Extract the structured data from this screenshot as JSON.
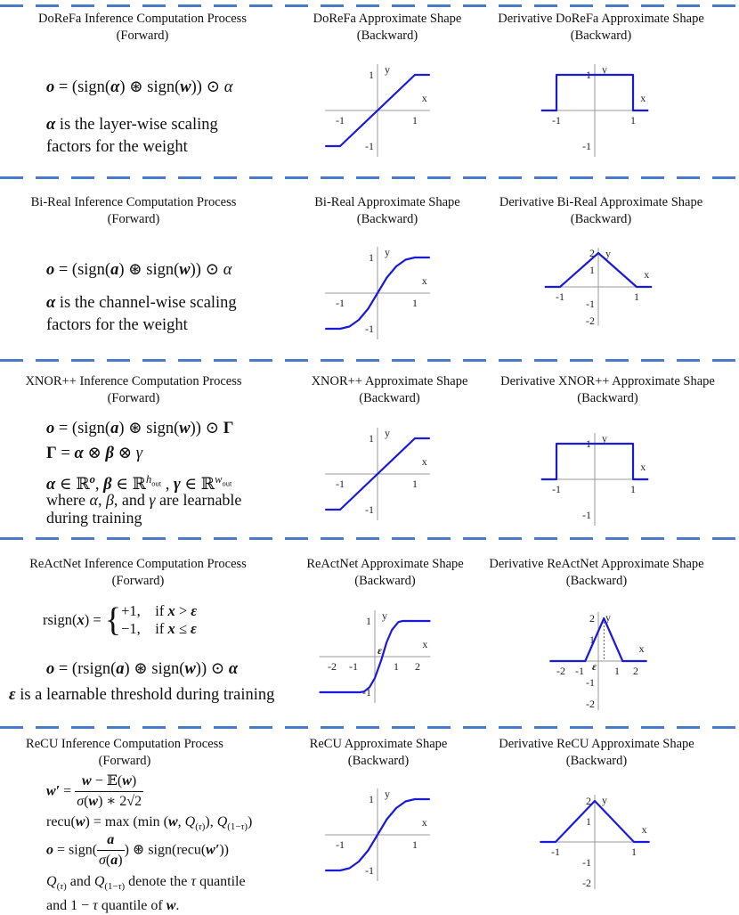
{
  "separator_color": "#4a7ac8",
  "curve_color": "#1a1adf",
  "sections": [
    {
      "title_inference": [
        "DoReFa Inference Computation Process",
        "(Forward)"
      ],
      "title_shape": [
        "DoReFa Approximate Shape",
        "(Backward)"
      ],
      "title_derivative": [
        "Derivative DoReFa Approximate Shape",
        "(Backward)"
      ],
      "formula_lines": [
        "o = (sign(α) ⊛ sign(w)) ⊙ α",
        "α is the layer-wise scaling",
        "factors for the weight"
      ]
    },
    {
      "title_inference": [
        "Bi-Real Inference Computation Process",
        "(Forward)"
      ],
      "title_shape": [
        "Bi-Real Approximate Shape",
        "(Backward)"
      ],
      "title_derivative": [
        "Derivative Bi-Real Approximate Shape",
        "(Backward)"
      ],
      "formula_lines": [
        "o = (sign(α) ⊛ sign(w)) ⊙ α",
        "α is the channel-wise scaling",
        "factors for the weight"
      ]
    },
    {
      "title_inference": [
        "XNOR++ Inference Computation Process",
        "(Forward)"
      ],
      "title_shape": [
        "XNOR++ Approximate Shape",
        "(Backward)"
      ],
      "title_derivative": [
        "Derivative XNOR++ Approximate Shape",
        "(Backward)"
      ],
      "formula_lines": [
        "o = (sign(a) ⊛ sign(w)) ⊙ Γ",
        "Γ = α ⊗ β ⊗ γ",
        "α ∈ ℝ^o, β ∈ ℝ^h_out, γ ∈ ℝ^w_out",
        "where α, β, and γ are learnable",
        "during training"
      ]
    },
    {
      "title_inference": [
        "ReActNet Inference Computation Process",
        "(Forward)"
      ],
      "title_shape": [
        "ReActNet Approximate Shape",
        "(Backward)"
      ],
      "title_derivative": [
        "Derivative ReActNet Approximate Shape",
        "(Backward)"
      ],
      "formula_lines": [
        "rsign(x) = {+1, if x > ε; −1, if x ≤ ε}",
        "o = (rsign(a) ⊛ sign(w)) ⊙ α",
        "ε is a learnable threshold during training"
      ]
    },
    {
      "title_inference": [
        "ReCU Inference Computation Process",
        "(Forward)"
      ],
      "title_shape": [
        "ReCU Approximate Shape",
        "(Backward)"
      ],
      "title_derivative": [
        "Derivative ReCU Approximate Shape",
        "(Backward)"
      ],
      "formula_lines": [
        "w′ = (w − 𝔼(w)) / (σ(w) ∗ 2√2)",
        "recu(w) = max(min(w, Q(τ)), Q(1−τ))",
        "o = sign(a / σ(a)) ⊛ sign(recu(w′))",
        "Q(τ) and Q(1−τ) denote the τ quantile",
        "and 1 − τ quantile of w."
      ]
    }
  ],
  "chart_data": [
    {
      "name": "DoReFa approximate shape",
      "type": "line",
      "xlabel": "x",
      "ylabel": "y",
      "xticks": [
        "-1",
        "1"
      ],
      "yticks": [
        "1",
        "-1"
      ],
      "xlim": [
        -1.4,
        1.4
      ],
      "ylim": [
        -1.3,
        1.3
      ],
      "series": [
        {
          "x": [
            -1.4,
            -1,
            1,
            1.4
          ],
          "y": [
            -1,
            -1,
            1,
            1
          ]
        }
      ]
    },
    {
      "name": "DoReFa derivative",
      "type": "line",
      "xlabel": "x",
      "ylabel": "y",
      "xticks": [
        "-1",
        "1"
      ],
      "yticks": [
        "1",
        "-1"
      ],
      "xlim": [
        -1.4,
        1.4
      ],
      "ylim": [
        -1.3,
        1.3
      ],
      "series": [
        {
          "x": [
            -1.4,
            -1,
            -1,
            1,
            1,
            1.4
          ],
          "y": [
            0,
            0,
            1,
            1,
            0,
            0
          ]
        }
      ]
    },
    {
      "name": "Bi-Real approximate shape",
      "type": "line",
      "xlabel": "x",
      "ylabel": "y",
      "xticks": [
        "-1",
        "1"
      ],
      "yticks": [
        "1",
        "-1"
      ],
      "xlim": [
        -1.4,
        1.4
      ],
      "ylim": [
        -1.3,
        1.3
      ],
      "series": [
        {
          "x": [
            -1.4,
            -1,
            -0.75,
            -0.5,
            -0.25,
            0,
            0.25,
            0.5,
            0.75,
            1,
            1.4
          ],
          "y": [
            -1,
            -1,
            -0.9375,
            -0.75,
            -0.4375,
            0,
            0.4375,
            0.75,
            0.9375,
            1,
            1
          ]
        }
      ]
    },
    {
      "name": "Bi-Real derivative",
      "type": "line",
      "xlabel": "x",
      "ylabel": "y",
      "xticks": [
        "-1",
        "1"
      ],
      "yticks": [
        "2",
        "1",
        "-1",
        "-2"
      ],
      "xlim": [
        -1.4,
        1.4
      ],
      "ylim": [
        -2.3,
        2.3
      ],
      "series": [
        {
          "x": [
            -1.4,
            -1,
            0,
            1,
            1.4
          ],
          "y": [
            0,
            0,
            2,
            0,
            0
          ]
        }
      ]
    },
    {
      "name": "XNOR++ approximate shape",
      "type": "line",
      "xlabel": "x",
      "ylabel": "y",
      "xticks": [
        "-1",
        "1"
      ],
      "yticks": [
        "1",
        "-1"
      ],
      "xlim": [
        -1.4,
        1.4
      ],
      "ylim": [
        -1.3,
        1.3
      ],
      "series": [
        {
          "x": [
            -1.4,
            -1,
            1,
            1.4
          ],
          "y": [
            -1,
            -1,
            1,
            1
          ]
        }
      ]
    },
    {
      "name": "XNOR++ derivative",
      "type": "line",
      "xlabel": "x",
      "ylabel": "y",
      "xticks": [
        "-1",
        "1"
      ],
      "yticks": [
        "1",
        "-1"
      ],
      "xlim": [
        -1.4,
        1.4
      ],
      "ylim": [
        -1.3,
        1.3
      ],
      "series": [
        {
          "x": [
            -1.4,
            -1,
            -1,
            1,
            1,
            1.4
          ],
          "y": [
            0,
            0,
            1,
            1,
            0,
            0
          ]
        }
      ]
    },
    {
      "name": "ReActNet approximate shape",
      "type": "line",
      "xlabel": "x",
      "ylabel": "y",
      "xticks": [
        "-2",
        "-1",
        "1",
        "2"
      ],
      "yticks": [
        "1",
        "-1"
      ],
      "xlim": [
        -2.6,
        2.6
      ],
      "ylim": [
        -1.3,
        1.3
      ],
      "annotation": "ε",
      "series": [
        {
          "x": [
            -2.6,
            -0.7,
            -0.5,
            -0.25,
            0,
            0.3,
            0.55,
            0.8,
            1.1,
            1.3,
            2.6
          ],
          "y": [
            -1,
            -1,
            -0.98,
            -0.86,
            -0.6,
            -0.1,
            0.4,
            0.75,
            0.97,
            1,
            1
          ]
        }
      ]
    },
    {
      "name": "ReActNet derivative",
      "type": "line",
      "xlabel": "x",
      "ylabel": "y",
      "xticks": [
        "-2",
        "-1",
        "1",
        "2"
      ],
      "yticks": [
        "2",
        "1",
        "-1",
        "-2"
      ],
      "xlim": [
        -2.6,
        2.6
      ],
      "ylim": [
        -2.3,
        2.3
      ],
      "annotation": "ε",
      "series": [
        {
          "x": [
            -2.6,
            -0.7,
            0.3,
            1.3,
            2.6
          ],
          "y": [
            0,
            0,
            2,
            0,
            0
          ]
        }
      ]
    },
    {
      "name": "ReCU approximate shape",
      "type": "line",
      "xlabel": "x",
      "ylabel": "y",
      "xticks": [
        "-1",
        "1"
      ],
      "yticks": [
        "1",
        "-1"
      ],
      "xlim": [
        -1.4,
        1.4
      ],
      "ylim": [
        -1.3,
        1.3
      ],
      "series": [
        {
          "x": [
            -1.4,
            -1,
            -0.75,
            -0.5,
            -0.25,
            0,
            0.25,
            0.5,
            0.75,
            1,
            1.4
          ],
          "y": [
            -1,
            -1,
            -0.9375,
            -0.75,
            -0.4375,
            0,
            0.4375,
            0.75,
            0.9375,
            1,
            1
          ]
        }
      ]
    },
    {
      "name": "ReCU derivative",
      "type": "line",
      "xlabel": "x",
      "ylabel": "y",
      "xticks": [
        "-1",
        "1"
      ],
      "yticks": [
        "2",
        "1",
        "-1",
        "-2"
      ],
      "xlim": [
        -1.4,
        1.4
      ],
      "ylim": [
        -2.3,
        2.3
      ],
      "series": [
        {
          "x": [
            -1.4,
            -1,
            0,
            1,
            1.4
          ],
          "y": [
            0,
            0,
            2,
            0,
            0
          ]
        }
      ]
    }
  ]
}
